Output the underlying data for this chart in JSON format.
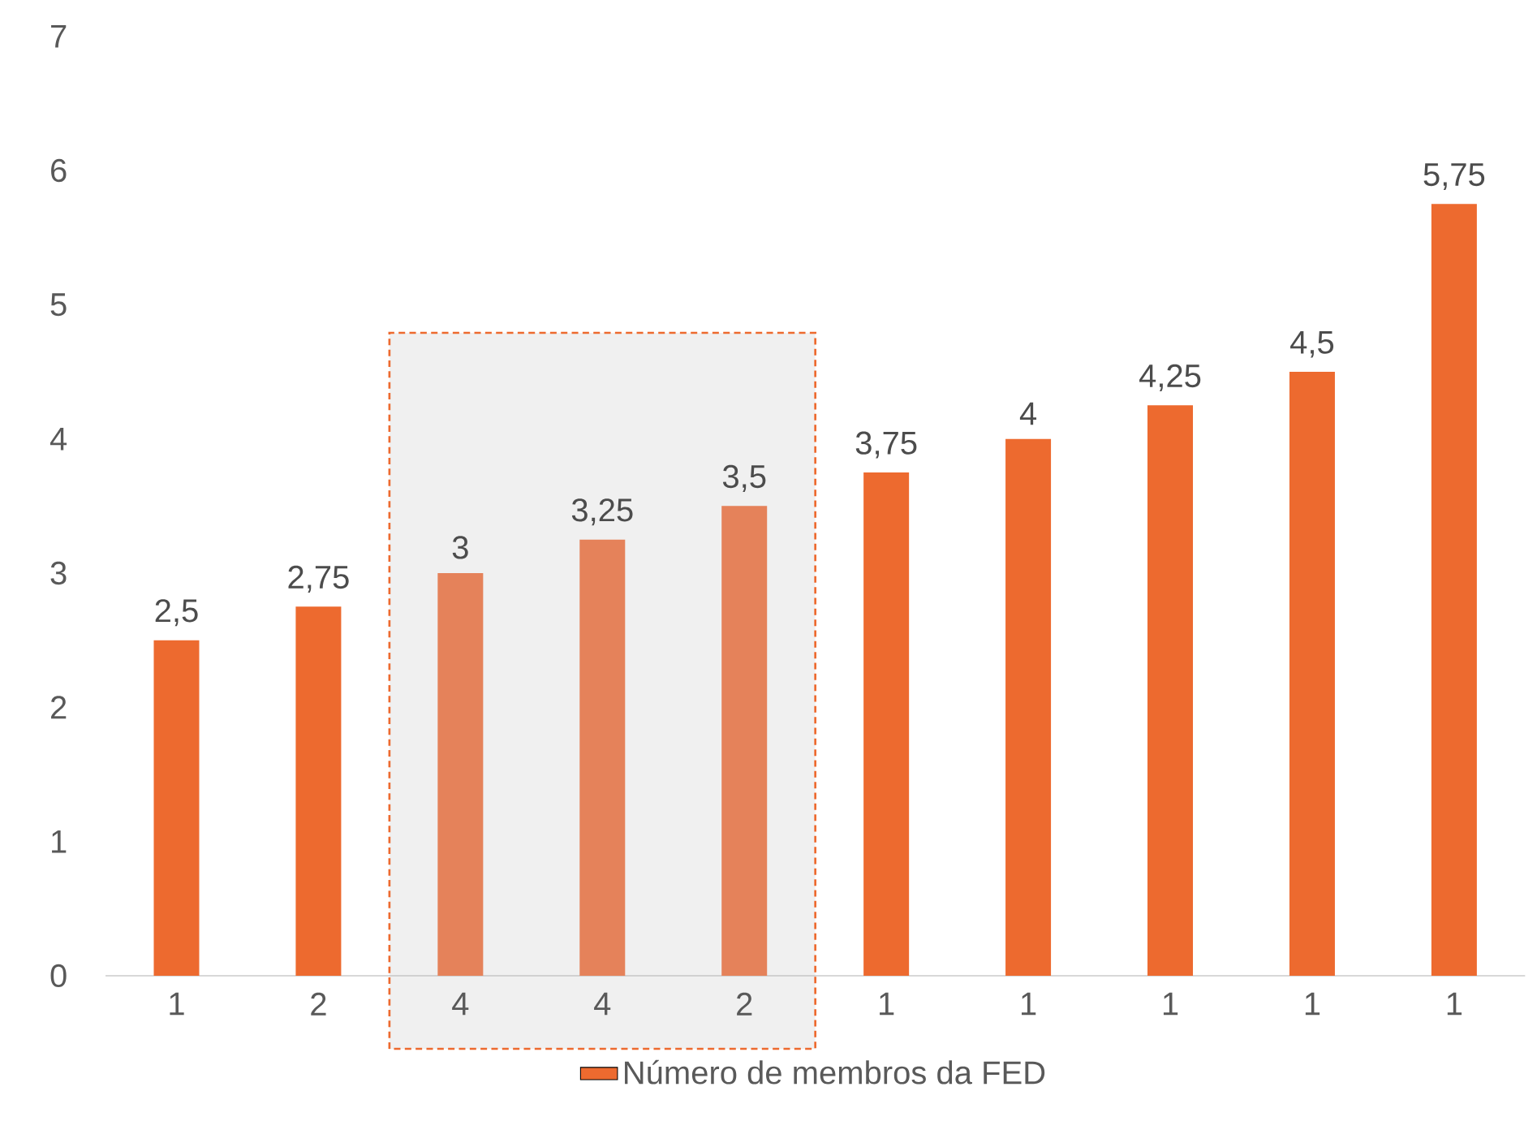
{
  "chart_data": {
    "type": "bar",
    "categories": [
      "1",
      "2",
      "4",
      "4",
      "2",
      "1",
      "1",
      "1",
      "1",
      "1"
    ],
    "series": [
      {
        "name": "Número de membros da FED",
        "color": "#ed6a2f",
        "colors": [
          "#ed6a2f",
          "#ed6a2f",
          "#e5825a",
          "#e5825a",
          "#e5825a",
          "#ed6a2f",
          "#ed6a2f",
          "#ed6a2f",
          "#ed6a2f",
          "#ed6a2f"
        ],
        "values": [
          2.5,
          2.75,
          3,
          3.25,
          3.5,
          3.75,
          4,
          4.25,
          4.5,
          5.75
        ],
        "value_labels": [
          "2,5",
          "2,75",
          "3",
          "3,25",
          "3,5",
          "3,75",
          "4",
          "4,25",
          "4,5",
          "5,75"
        ]
      }
    ],
    "ylim": [
      0,
      7
    ],
    "yticks": [
      0,
      1,
      2,
      3,
      4,
      5,
      6,
      7
    ],
    "grid": false,
    "legend": "bottom"
  }
}
